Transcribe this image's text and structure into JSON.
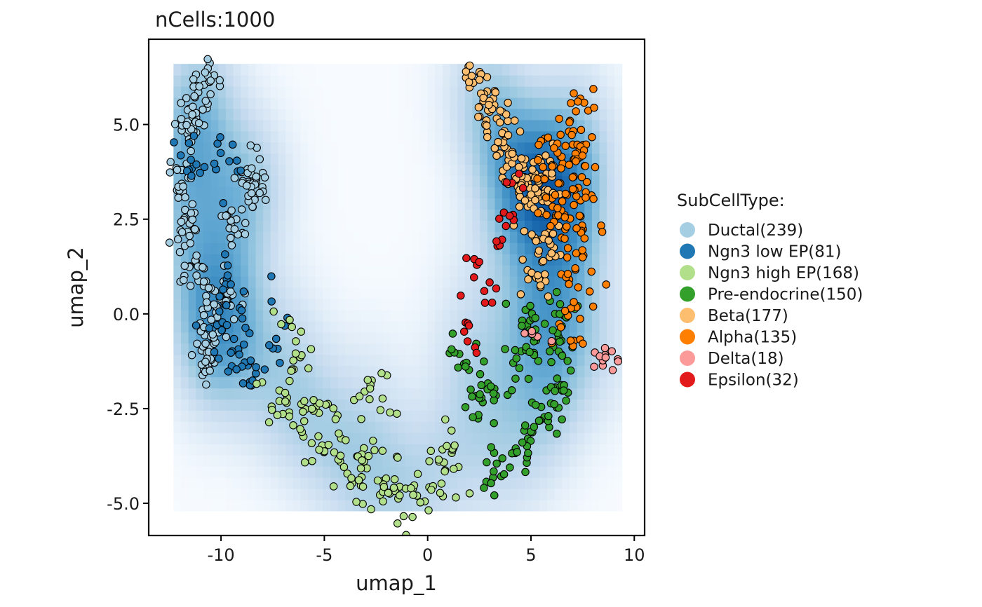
{
  "chart_data": {
    "type": "scatter",
    "title": "nCells:1000",
    "xlabel": "umap_1",
    "ylabel": "umap_2",
    "xlim": [
      -13.5,
      10.5
    ],
    "ylim": [
      -5.85,
      7.25
    ],
    "x_ticks": [
      -10,
      -5,
      0,
      5,
      10
    ],
    "x_tick_labels": [
      "-10",
      "-5",
      "0",
      "5",
      "10"
    ],
    "y_ticks": [
      -5.0,
      -2.5,
      0.0,
      2.5,
      5.0
    ],
    "y_tick_labels": [
      "-5.0",
      "-2.5",
      "0.0",
      "2.5",
      "5.0"
    ],
    "grid": false,
    "density_background": {
      "colormap": "Blues",
      "x_range": [
        -12.3,
        9.4
      ],
      "y_range": [
        -5.2,
        6.6
      ]
    },
    "legend": {
      "title": "SubCellType:",
      "position": "right",
      "entries": [
        {
          "label": "Ductal(239)",
          "color": "#a6cee3"
        },
        {
          "label": "Ngn3 low EP(81)",
          "color": "#1f78b4"
        },
        {
          "label": "Ngn3 high EP(168)",
          "color": "#b2df8a"
        },
        {
          "label": "Pre-endocrine(150)",
          "color": "#33a02c"
        },
        {
          "label": "Beta(177)",
          "color": "#fdbf6f"
        },
        {
          "label": "Alpha(135)",
          "color": "#ff7f00"
        },
        {
          "label": "Delta(18)",
          "color": "#fb9a99"
        },
        {
          "label": "Epsilon(32)",
          "color": "#e31a1c"
        }
      ]
    },
    "series": [
      {
        "name": "Ductal",
        "count": 239,
        "color": "#a6cee3",
        "spread": 0.3,
        "centers": [
          [
            -10.6,
            6.2
          ],
          [
            -11.2,
            5.6
          ],
          [
            -11.5,
            5.0
          ],
          [
            -12.0,
            3.6
          ],
          [
            -11.7,
            2.3
          ],
          [
            -11.3,
            1.2
          ],
          [
            -10.7,
            0.4
          ],
          [
            -10.4,
            -0.7
          ],
          [
            -10.8,
            -1.4
          ],
          [
            -9.6,
            0.2
          ],
          [
            -9.3,
            2.3
          ],
          [
            -8.3,
            3.1
          ],
          [
            -8.6,
            3.5
          ]
        ]
      },
      {
        "name": "Ngn3 low EP",
        "count": 81,
        "color": "#1f78b4",
        "spread": 0.45,
        "centers": [
          [
            -11.5,
            4.0
          ],
          [
            -9.5,
            4.1
          ],
          [
            -10.3,
            -0.4
          ],
          [
            -9.2,
            -1.2
          ],
          [
            -8.5,
            -1.5
          ],
          [
            -9.5,
            0.8
          ],
          [
            -7.0,
            -0.5
          ]
        ]
      },
      {
        "name": "Ngn3 high EP",
        "count": 168,
        "color": "#b2df8a",
        "spread": 0.5,
        "centers": [
          [
            -7.3,
            -2.2
          ],
          [
            -6.0,
            -2.7
          ],
          [
            -5.0,
            -3.3
          ],
          [
            -4.0,
            -3.9
          ],
          [
            -3.0,
            -4.2
          ],
          [
            -2.0,
            -4.5
          ],
          [
            -1.0,
            -4.9
          ],
          [
            0.0,
            -4.4
          ],
          [
            1.3,
            -4.1
          ],
          [
            -2.4,
            -2.2
          ],
          [
            -6.5,
            -1.0
          ]
        ]
      },
      {
        "name": "Pre-endocrine",
        "count": 150,
        "color": "#33a02c",
        "spread": 0.4,
        "centers": [
          [
            3.4,
            -4.3
          ],
          [
            4.4,
            -3.7
          ],
          [
            5.4,
            -3.0
          ],
          [
            6.0,
            -2.3
          ],
          [
            6.3,
            -1.5
          ],
          [
            6.0,
            -0.6
          ],
          [
            5.0,
            -0.2
          ],
          [
            4.4,
            -1.0
          ],
          [
            2.5,
            -2.3
          ],
          [
            1.6,
            -1.2
          ],
          [
            6.3,
            0.0
          ],
          [
            3.3,
            -2.0
          ]
        ]
      },
      {
        "name": "Beta",
        "count": 177,
        "color": "#fdbf6f",
        "spread": 0.35,
        "centers": [
          [
            2.3,
            6.2
          ],
          [
            2.7,
            5.5
          ],
          [
            3.5,
            4.9
          ],
          [
            3.8,
            4.0
          ],
          [
            4.6,
            3.6
          ],
          [
            5.5,
            3.2
          ],
          [
            5.7,
            2.0
          ],
          [
            5.3,
            0.9
          ],
          [
            4.7,
            3.1
          ],
          [
            5.8,
            3.8
          ]
        ]
      },
      {
        "name": "Alpha",
        "count": 135,
        "color": "#ff7f00",
        "spread": 0.45,
        "centers": [
          [
            7.3,
            5.1
          ],
          [
            7.5,
            4.3
          ],
          [
            6.6,
            4.0
          ],
          [
            7.4,
            3.1
          ],
          [
            7.6,
            2.2
          ],
          [
            7.3,
            0.9
          ],
          [
            6.3,
            2.6
          ],
          [
            5.5,
            4.3
          ],
          [
            7.0,
            -0.3
          ]
        ]
      },
      {
        "name": "Delta",
        "count": 18,
        "color": "#fb9a99",
        "spread": 0.2,
        "centers": [
          [
            8.4,
            -1.1
          ],
          [
            9.1,
            -1.2
          ],
          [
            5.0,
            -0.7
          ]
        ]
      },
      {
        "name": "Epsilon",
        "count": 32,
        "color": "#e31a1c",
        "spread": 0.2,
        "centers": [
          [
            3.3,
            2.0
          ],
          [
            4.0,
            2.6
          ],
          [
            2.4,
            1.5
          ],
          [
            2.9,
            0.6
          ],
          [
            1.8,
            -0.3
          ],
          [
            1.7,
            -0.9
          ],
          [
            4.3,
            3.5
          ]
        ]
      }
    ]
  }
}
